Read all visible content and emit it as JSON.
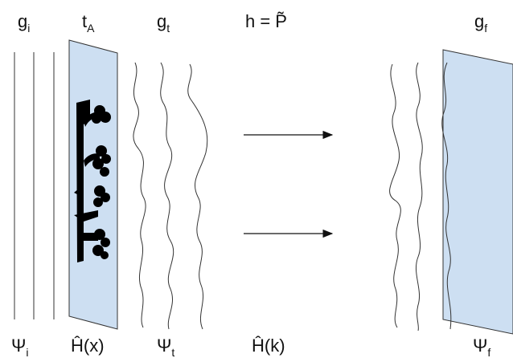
{
  "top_labels": [
    {
      "text": "g",
      "sub": "i"
    },
    {
      "text": "t",
      "sub": "A"
    },
    {
      "text": "g",
      "sub": "t"
    },
    {
      "text": "h = P̃"
    },
    {
      "text": "g",
      "sub": "f"
    }
  ],
  "bottom_labels": [
    {
      "text": "Ψ",
      "sub": "i"
    },
    {
      "text": "Ĥ(x)"
    },
    {
      "text": "Ψ",
      "sub": "t"
    },
    {
      "text": "Ĥ(k)"
    },
    {
      "text": "Ψ",
      "sub": "f"
    }
  ]
}
